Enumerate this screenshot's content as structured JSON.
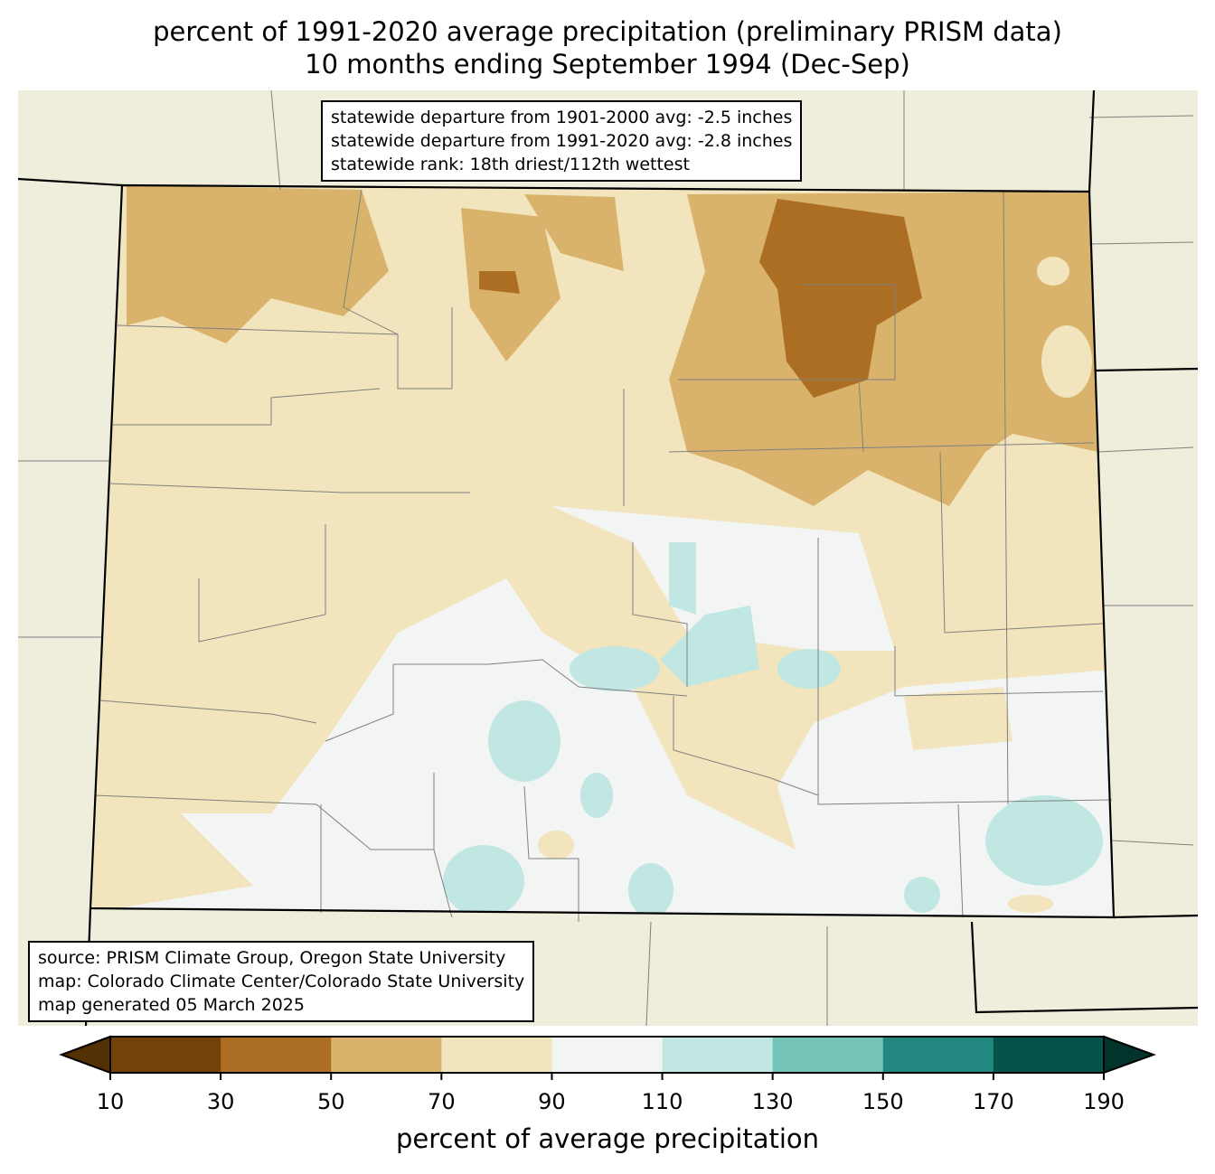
{
  "title": {
    "line1": "percent of 1991-2020 average precipitation (preliminary PRISM data)",
    "line2": "10 months ending September 1994 (Dec-Sep)"
  },
  "stats": {
    "line1": "statewide departure from 1901-2000 avg: -2.5 inches",
    "line2": "statewide departure from 1991-2020 avg: -2.8 inches",
    "line3": "statewide rank: 18th driest/112th wettest"
  },
  "source": {
    "line1": "source: PRISM Climate Group, Oregon State University",
    "line2": "map: Colorado Climate Center/Colorado State University",
    "line3": "map generated 05 March 2025"
  },
  "colorbar": {
    "label": "percent of average precipitation",
    "ticks": [
      "10",
      "30",
      "50",
      "70",
      "90",
      "110",
      "130",
      "150",
      "170",
      "190"
    ],
    "colors": [
      "#734208",
      "#ab6e22",
      "#d9b36b",
      "#f2e4bd",
      "#f3f5f4",
      "#c0e7e2",
      "#73c3b6",
      "#22877e",
      "#03534a"
    ],
    "under_color": "#543005",
    "over_color": "#01352c"
  },
  "background_color": "#efeddb"
}
